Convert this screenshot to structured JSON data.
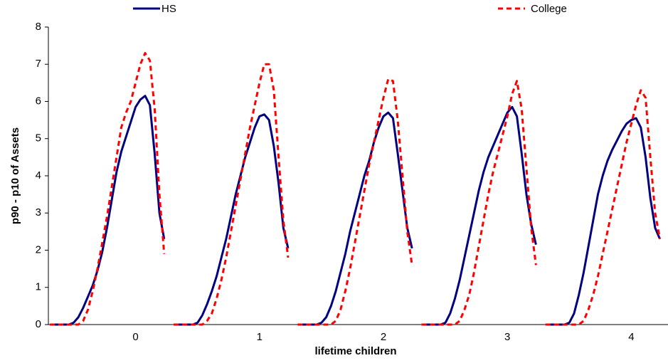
{
  "chart_data": {
    "type": "line",
    "xlabel": "lifetime children",
    "ylabel": "p90 - p10 of Assets",
    "ylim": [
      0,
      8
    ],
    "yticks": [
      0,
      1,
      2,
      3,
      4,
      5,
      6,
      7,
      8
    ],
    "grid": false,
    "legend": "top",
    "categories": [
      null,
      null,
      null,
      null,
      null,
      null,
      null,
      null,
      null,
      null,
      null,
      null,
      null,
      null,
      null,
      null,
      null,
      null,
      "0",
      null,
      null,
      null,
      null,
      null,
      null,
      null,
      null,
      null,
      null,
      null,
      null,
      null,
      null,
      null,
      null,
      null,
      null,
      null,
      null,
      null,
      null,
      null,
      null,
      null,
      "1",
      null,
      null,
      null,
      null,
      null,
      null,
      null,
      null,
      null,
      null,
      null,
      null,
      null,
      null,
      null,
      null,
      null,
      null,
      null,
      null,
      null,
      null,
      null,
      null,
      null,
      "2",
      null,
      null,
      null,
      null,
      null,
      null,
      null,
      null,
      null,
      null,
      null,
      null,
      null,
      null,
      null,
      null,
      null,
      null,
      null,
      null,
      null,
      null,
      null,
      null,
      null,
      "3",
      null,
      null,
      null,
      null,
      null,
      null,
      null,
      null,
      null,
      null,
      null,
      null,
      null,
      null,
      null,
      null,
      null,
      null,
      null,
      null,
      null,
      null,
      null,
      null,
      null,
      "4",
      null,
      null,
      null,
      null,
      null,
      null,
      null
    ],
    "series": [
      {
        "name": "HS",
        "color": "#000080",
        "dash": false,
        "values": [
          0,
          0,
          0,
          0,
          0,
          0.05,
          0.2,
          0.45,
          0.75,
          1.05,
          1.45,
          1.95,
          2.6,
          3.35,
          4.1,
          4.65,
          5.05,
          5.45,
          5.85,
          6.05,
          6.15,
          5.9,
          4.6,
          3.0,
          2.3,
          null,
          0,
          0,
          0,
          0,
          0,
          0.05,
          0.25,
          0.55,
          0.9,
          1.3,
          1.8,
          2.3,
          2.9,
          3.5,
          4.0,
          4.5,
          4.9,
          5.3,
          5.6,
          5.65,
          5.5,
          4.8,
          3.8,
          2.6,
          2.05,
          null,
          0,
          0,
          0,
          0,
          0,
          0.05,
          0.2,
          0.5,
          0.9,
          1.4,
          1.9,
          2.5,
          3.0,
          3.5,
          4.0,
          4.4,
          4.9,
          5.3,
          5.6,
          5.7,
          5.55,
          4.6,
          3.6,
          2.6,
          2.05,
          null,
          0,
          0,
          0,
          0,
          0,
          0.05,
          0.3,
          0.7,
          1.2,
          1.8,
          2.4,
          3.0,
          3.6,
          4.1,
          4.5,
          4.8,
          5.1,
          5.4,
          5.7,
          5.85,
          5.6,
          4.6,
          3.5,
          2.7,
          2.15,
          null,
          0,
          0,
          0,
          0,
          0,
          0.05,
          0.3,
          0.8,
          1.4,
          2.1,
          2.8,
          3.5,
          4.0,
          4.4,
          4.7,
          4.95,
          5.2,
          5.4,
          5.5,
          5.55,
          5.3,
          4.5,
          3.4,
          2.6,
          2.3,
          null
        ]
      },
      {
        "name": "College",
        "color": "#ff0000",
        "dash": true,
        "values": [
          0,
          0,
          0,
          0,
          0,
          0,
          0,
          0.1,
          0.4,
          0.9,
          1.5,
          2.2,
          2.9,
          3.7,
          4.5,
          5.3,
          5.7,
          6.0,
          6.5,
          7.0,
          7.3,
          7.1,
          5.8,
          3.5,
          1.9,
          null,
          0,
          0,
          0,
          0,
          0,
          0,
          0,
          0.1,
          0.3,
          0.7,
          1.2,
          1.8,
          2.5,
          3.2,
          3.9,
          4.6,
          5.3,
          5.9,
          6.5,
          7.0,
          7.0,
          6.3,
          4.5,
          2.8,
          1.8,
          null,
          0,
          0,
          0,
          0,
          0,
          0,
          0,
          0,
          0.1,
          0.4,
          0.9,
          1.5,
          2.2,
          2.9,
          3.6,
          4.3,
          4.9,
          5.5,
          6.1,
          6.6,
          6.55,
          5.5,
          4.0,
          2.5,
          1.6,
          null,
          0,
          0,
          0,
          0,
          0,
          0,
          0,
          0,
          0.1,
          0.4,
          0.8,
          1.4,
          2.1,
          2.8,
          3.5,
          4.1,
          4.6,
          5.1,
          5.6,
          6.2,
          6.55,
          5.8,
          4.2,
          2.6,
          1.6,
          null,
          0,
          0,
          0,
          0,
          0,
          0,
          0,
          0,
          0.1,
          0.4,
          0.8,
          1.3,
          1.9,
          2.5,
          3.1,
          3.7,
          4.3,
          4.9,
          5.4,
          5.9,
          6.3,
          6.1,
          4.5,
          3.0,
          2.3,
          null
        ]
      }
    ]
  }
}
